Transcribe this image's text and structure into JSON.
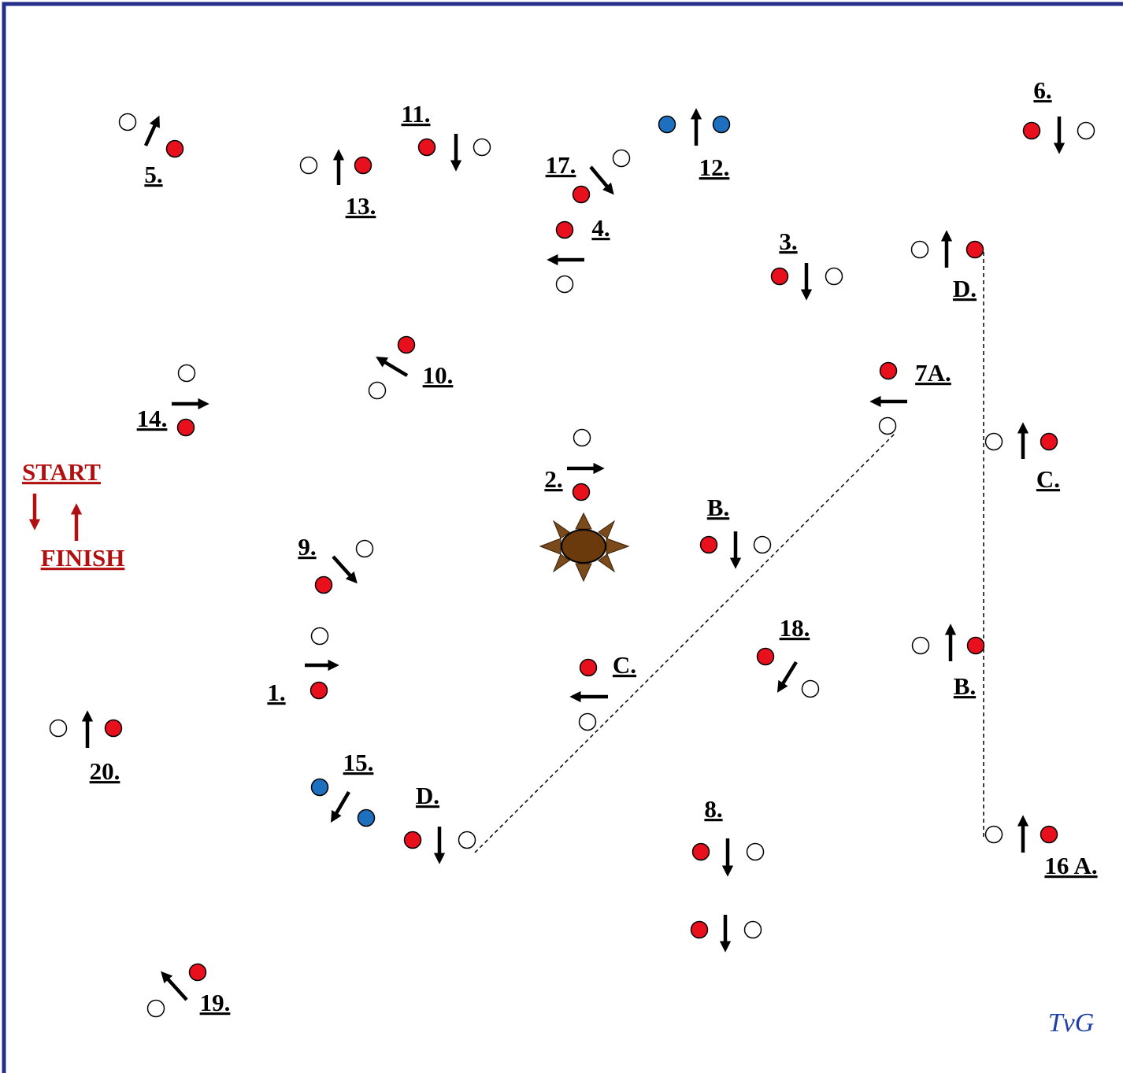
{
  "labels": [
    "5.",
    "11.",
    "13.",
    "17.",
    "4.",
    "12.",
    "6.",
    "3.",
    "D.",
    "10.",
    "7A.",
    "14.",
    "START",
    "FINISH",
    "2.",
    "B.",
    "C.",
    "9.",
    "18.",
    "B.",
    "C.",
    "1.",
    "20.",
    "15.",
    "D.",
    "8.",
    "16 A.",
    "19."
  ],
  "signature": "TvG"
}
